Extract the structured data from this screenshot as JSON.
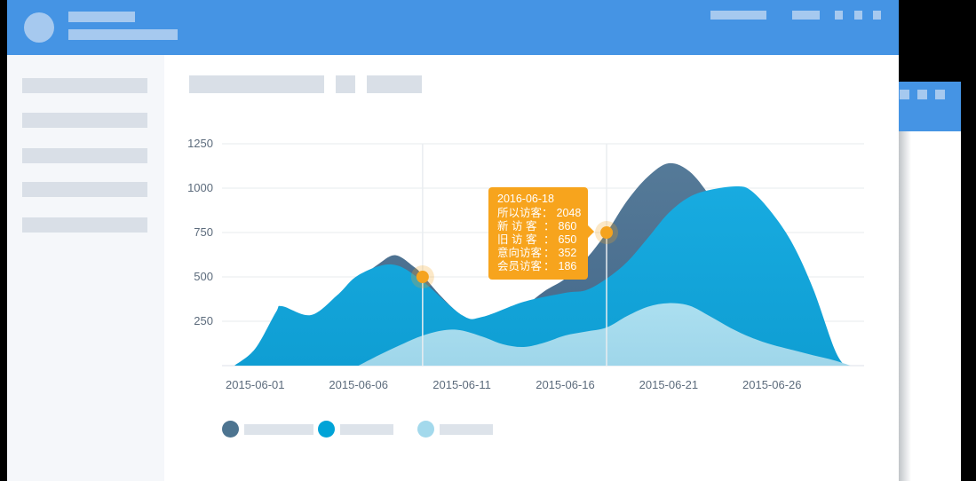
{
  "colors": {
    "header_blue": "#4594e4",
    "header_placeholder": "#a6c9ef",
    "sidebar_bg": "#f5f7fa",
    "placeholder_gray": "#d9dfe7",
    "legend_placeholder": "#dde3ea",
    "grid_line": "#e7ebee",
    "axis_label": "#5c6b7c",
    "tooltip_orange": "#f7a41d",
    "background": "#000000"
  },
  "tooltip": {
    "date": "2016-06-18",
    "colon": "：",
    "rows": [
      {
        "label": "所以访客",
        "value": "2048"
      },
      {
        "label": "新 访 客",
        "value": "860"
      },
      {
        "label": "旧 访 客",
        "value": "650"
      },
      {
        "label": "意向访客",
        "value": "352"
      },
      {
        "label": "会员访客",
        "value": "186"
      }
    ]
  },
  "chart_data": {
    "type": "area",
    "title": "",
    "xlabel": "",
    "ylabel": "",
    "grid": true,
    "x_axis": {
      "tick_labels": [
        "2015-06-01",
        "2015-06-06",
        "2015-06-11",
        "2015-06-16",
        "2015-06-21",
        "2015-06-26"
      ],
      "tick_days": [
        1,
        6,
        11,
        16,
        21,
        26
      ],
      "unit": "day index from 2015-05-31"
    },
    "y_axis": {
      "tick_values": [
        250,
        500,
        750,
        1000,
        1250
      ],
      "range": [
        0,
        1250
      ]
    },
    "highlight_color": "#f5a31e",
    "highlights": [
      {
        "day": 9.1,
        "value": 500
      },
      {
        "day": 18,
        "value": 750
      }
    ],
    "legend": [
      {
        "id": "series-dark",
        "color": "#4d7490"
      },
      {
        "id": "series-blue",
        "color": "#00a3d7"
      },
      {
        "id": "series-light",
        "color": "#a3d9ec"
      }
    ],
    "series": [
      {
        "id": "series-dark",
        "color": "#557a98",
        "color2": "#44688a",
        "points": [
          [
            3,
            0
          ],
          [
            4,
            150
          ],
          [
            5,
            330
          ],
          [
            6,
            480
          ],
          [
            7,
            575
          ],
          [
            7.8,
            622
          ],
          [
            8.7,
            555
          ],
          [
            9.1,
            510
          ],
          [
            10,
            390
          ],
          [
            11,
            282
          ],
          [
            12,
            233
          ],
          [
            13,
            250
          ],
          [
            14,
            330
          ],
          [
            15,
            420
          ],
          [
            16,
            490
          ],
          [
            17,
            600
          ],
          [
            18,
            750
          ],
          [
            19,
            930
          ],
          [
            20,
            1065
          ],
          [
            21,
            1140
          ],
          [
            22,
            1095
          ],
          [
            23,
            955
          ],
          [
            24,
            775
          ],
          [
            25,
            575
          ],
          [
            26,
            415
          ],
          [
            27,
            295
          ],
          [
            28,
            170
          ],
          [
            29,
            45
          ],
          [
            29.4,
            0
          ]
        ]
      },
      {
        "id": "series-blue",
        "color": "#18abe0",
        "color2": "#0f9ed3",
        "points": [
          [
            0,
            0
          ],
          [
            1,
            95
          ],
          [
            2,
            300
          ],
          [
            2.3,
            335
          ],
          [
            3.7,
            285
          ],
          [
            5,
            400
          ],
          [
            6,
            510
          ],
          [
            7.6,
            570
          ],
          [
            9,
            485
          ],
          [
            11,
            285
          ],
          [
            12,
            275
          ],
          [
            14,
            360
          ],
          [
            16,
            410
          ],
          [
            17,
            425
          ],
          [
            18,
            490
          ],
          [
            19,
            585
          ],
          [
            20,
            720
          ],
          [
            21,
            860
          ],
          [
            22,
            950
          ],
          [
            23,
            990
          ],
          [
            24.3,
            1010
          ],
          [
            25,
            985
          ],
          [
            26,
            860
          ],
          [
            27,
            685
          ],
          [
            28,
            430
          ],
          [
            29,
            100
          ],
          [
            29.5,
            0
          ]
        ]
      },
      {
        "id": "series-light",
        "color": "#abdff0",
        "color2": "#9fd6ea",
        "points": [
          [
            6,
            0
          ],
          [
            7,
            60
          ],
          [
            8,
            115
          ],
          [
            9,
            165
          ],
          [
            10,
            197
          ],
          [
            10.9,
            200
          ],
          [
            12,
            163
          ],
          [
            13,
            120
          ],
          [
            14,
            105
          ],
          [
            15,
            130
          ],
          [
            16,
            170
          ],
          [
            17,
            192
          ],
          [
            18,
            215
          ],
          [
            19,
            280
          ],
          [
            20,
            332
          ],
          [
            21,
            352
          ],
          [
            22,
            338
          ],
          [
            23,
            278
          ],
          [
            24,
            212
          ],
          [
            25,
            158
          ],
          [
            26,
            118
          ],
          [
            27,
            88
          ],
          [
            28,
            58
          ],
          [
            29,
            30
          ],
          [
            29.8,
            0
          ]
        ]
      }
    ]
  }
}
